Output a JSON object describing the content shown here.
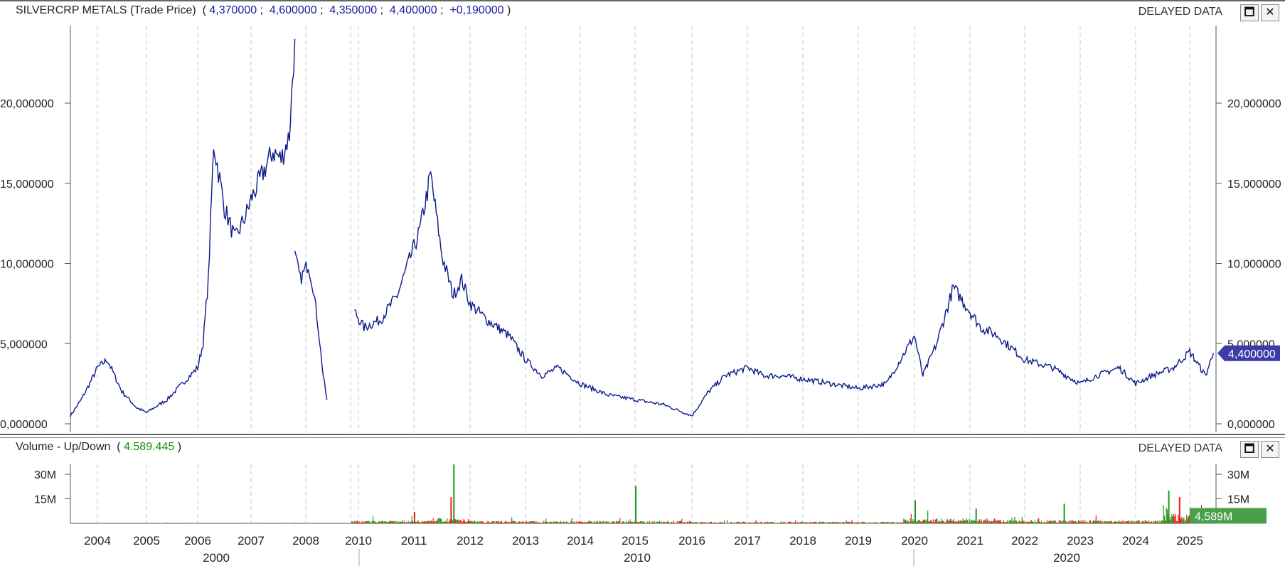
{
  "price_pane": {
    "title": "SILVERCRP METALS (Trade Price)",
    "open": "4,370000",
    "high": "4,600000",
    "low": "4,350000",
    "close": "4,400000",
    "change": "+0,190000",
    "delayed": "DELAYED DATA",
    "last_badge": "4,400000"
  },
  "volume_pane": {
    "title": "Volume - Up/Down",
    "value": "4.589.445",
    "delayed": "DELAYED DATA",
    "last_badge": "4,589M"
  },
  "buttons": {
    "maximize": "🗖",
    "close": "✕"
  },
  "colors": {
    "price_line": "#0b1a8a",
    "up_volume": "#1c9a1c",
    "down_volume": "#ee1c1c",
    "badge_price": "#3c3ca8",
    "badge_volume": "#4aa04a"
  },
  "chart_data": [
    {
      "type": "line",
      "series": [
        {
          "x": [
            2003.5,
            2003.7,
            2003.9,
            2004.0,
            2004.2,
            2004.5,
            2004.8,
            2005.0,
            2005.4,
            2005.7,
            2006.0,
            2006.1,
            2006.2,
            2006.3,
            2006.5,
            2006.7,
            2006.9,
            2007.0,
            2007.2,
            2007.4,
            2007.55,
            2007.7,
            2007.8,
            2007.8,
            2007.9,
            2008.1,
            2008.3,
            2008.5,
            2008.7,
            2008.85,
            2009.9,
            2010.1,
            2010.4,
            2010.7,
            2010.9,
            2011.1,
            2011.3,
            2011.5,
            2011.7,
            2011.85,
            2012.0,
            2012.3,
            2012.7,
            2013.0,
            2013.3,
            2013.6,
            2014.0,
            2014.5,
            2015.0,
            2015.5,
            2016.0,
            2016.3,
            2016.6,
            2017.0,
            2017.3,
            2017.6,
            2018.0,
            2018.5,
            2019.0,
            2019.5,
            2020.0,
            2020.15,
            2020.4,
            2020.7,
            2021.0,
            2021.2,
            2021.5,
            2022.0,
            2022.5,
            2023.0,
            2023.3,
            2023.7,
            2024.0,
            2024.3,
            2024.7,
            2025.0,
            2025.3,
            2025.45
          ],
          "y": [
            0.5,
            1.5,
            2.8,
            3.5,
            4.0,
            2.0,
            1.0,
            0.7,
            1.5,
            2.5,
            3.5,
            5.0,
            9.0,
            17.5,
            13.5,
            11.5,
            13.0,
            14.0,
            15.5,
            17.0,
            16.5,
            18.0,
            24.0,
            10.5,
            9.0,
            10.0,
            8.5,
            6.0,
            3.0,
            1.5,
            7.0,
            6.0,
            6.5,
            8.0,
            10.0,
            12.0,
            15.5,
            10.5,
            8.0,
            9.0,
            7.5,
            6.5,
            5.5,
            4.0,
            3.0,
            3.5,
            2.5,
            1.8,
            1.5,
            1.2,
            0.5,
            2.0,
            3.0,
            3.5,
            3.0,
            3.0,
            2.8,
            2.5,
            2.2,
            2.5,
            5.5,
            3.0,
            5.0,
            8.5,
            7.0,
            6.0,
            5.5,
            4.0,
            3.5,
            2.5,
            3.0,
            3.5,
            2.5,
            3.0,
            3.5,
            4.5,
            3.0,
            4.4
          ]
        }
      ],
      "ylim": [
        0,
        25
      ],
      "yticks": [
        "0,000000",
        "5,000000",
        "10,000000",
        "15,000000",
        "20,000000"
      ],
      "yticks_right": [
        "0,000000",
        "5,000000",
        "10,000000",
        "15,000000",
        "20,000000"
      ],
      "xticks": [
        "2004",
        "2005",
        "2006",
        "2007",
        "2008",
        "2010",
        "2011",
        "2012",
        "2013",
        "2014",
        "2015",
        "2016",
        "2017",
        "2018",
        "2019",
        "2020",
        "2021",
        "2022",
        "2023",
        "2024",
        "2025"
      ],
      "decades": [
        "2000",
        "2010",
        "2020"
      ],
      "grid": true
    },
    {
      "type": "bar",
      "up_down": true,
      "spikes": [
        {
          "x": 2011.7,
          "value": 36,
          "dir": "up"
        },
        {
          "x": 2011.65,
          "value": 16,
          "dir": "down"
        },
        {
          "x": 2011.0,
          "value": 7,
          "dir": "down"
        },
        {
          "x": 2015.0,
          "value": 23,
          "dir": "up"
        },
        {
          "x": 2020.0,
          "value": 14,
          "dir": "up"
        },
        {
          "x": 2021.1,
          "value": 9,
          "dir": "up"
        },
        {
          "x": 2022.7,
          "value": 12,
          "dir": "up"
        },
        {
          "x": 2024.6,
          "value": 20,
          "dir": "up"
        },
        {
          "x": 2024.8,
          "value": 16,
          "dir": "down"
        }
      ],
      "ylim": [
        0,
        35
      ],
      "yticks": [
        "15M",
        "30M"
      ],
      "yticks_right": [
        "15M",
        "30M"
      ]
    }
  ]
}
